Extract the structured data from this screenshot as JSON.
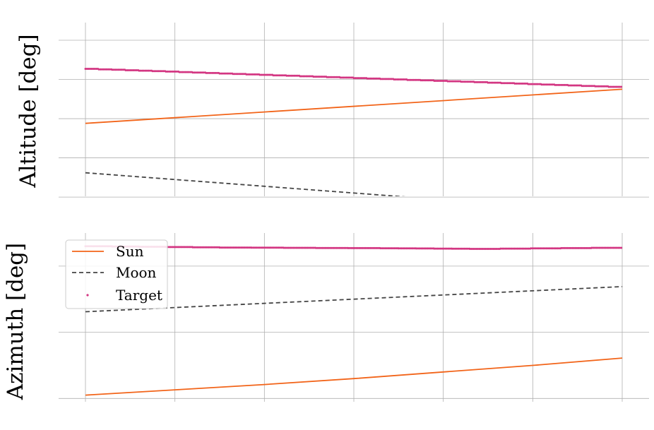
{
  "colors": {
    "sun": "#f26419",
    "moon": "#444444",
    "target": "#d33682",
    "grid": "#b0b0b0",
    "legend_border": "#cccccc"
  },
  "legend": {
    "placement": "upper-left",
    "panel": 1,
    "entries": [
      {
        "label": "Sun",
        "series": "sun",
        "style": "solid-line"
      },
      {
        "label": "Moon",
        "series": "moon",
        "style": "dashed-line"
      },
      {
        "label": "Target",
        "series": "target",
        "style": "dot"
      }
    ]
  },
  "chart_data": [
    {
      "type": "line",
      "title": "",
      "xlabel": "",
      "ylabel": "Altitude [deg]",
      "tick_labels_shown": false,
      "grid": true,
      "x_ticks": [
        0,
        1,
        2,
        3,
        4,
        5,
        6
      ],
      "y_ticks": [
        -1,
        0,
        1,
        2,
        3
      ],
      "xlim": [
        -0.3,
        6.3
      ],
      "ylim": [
        -0.98,
        3.45
      ],
      "series": [
        {
          "key": "sun",
          "style": "solid",
          "x": [
            0,
            6
          ],
          "y": [
            0.88,
            1.75
          ]
        },
        {
          "key": "moon",
          "style": "dashed",
          "x": [
            0,
            3.6
          ],
          "y": [
            -0.38,
            -1.0
          ]
        },
        {
          "key": "target",
          "style": "dots",
          "x": [
            0,
            6
          ],
          "y": [
            2.27,
            1.8
          ],
          "steps": 40
        }
      ]
    },
    {
      "type": "line",
      "title": "",
      "xlabel": "",
      "ylabel": "Azimuth [deg]",
      "tick_labels_shown": false,
      "grid": true,
      "x_ticks": [
        0,
        1,
        2,
        3,
        4,
        5,
        6
      ],
      "y_ticks": [
        0,
        1,
        2
      ],
      "xlim": [
        -0.3,
        6.3
      ],
      "ylim": [
        -0.05,
        2.5
      ],
      "series": [
        {
          "key": "sun",
          "style": "solid",
          "x": [
            0,
            1,
            2,
            3,
            4,
            5,
            6
          ],
          "y": [
            0.05,
            0.13,
            0.21,
            0.3,
            0.4,
            0.5,
            0.61
          ]
        },
        {
          "key": "moon",
          "style": "dashed",
          "x": [
            0,
            6
          ],
          "y": [
            1.31,
            1.69
          ]
        },
        {
          "key": "target",
          "style": "dots",
          "x": [
            0,
            1.5,
            3.3,
            4.3,
            6
          ],
          "y": [
            2.3,
            2.28,
            2.27,
            2.26,
            2.28
          ],
          "steps": 5
        }
      ]
    }
  ]
}
